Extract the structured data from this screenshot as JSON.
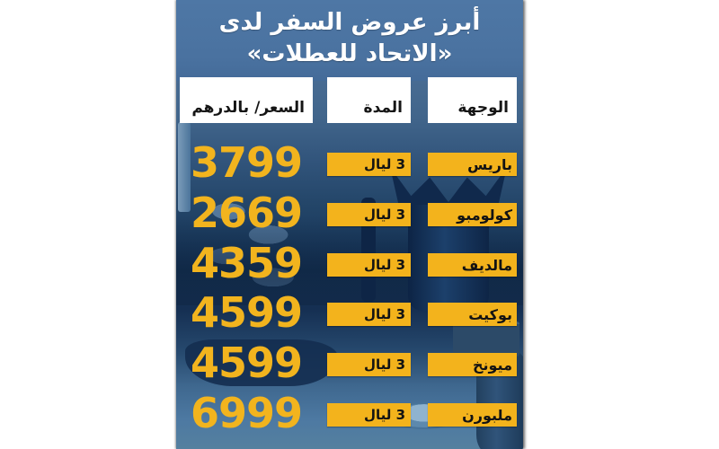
{
  "colors": {
    "accent_yellow": "#F3B31C",
    "title_blue": "#4A72A0",
    "body_navy": "#16355A",
    "header_cell_bg": "#FFFFFF",
    "text_black": "#151515",
    "text_white": "#FFFFFF"
  },
  "title": {
    "line1": "أبرز عروض السفر لدى",
    "line2": "«الاتحاد للعطلات»"
  },
  "table": {
    "headers": {
      "destination": "الوجهة",
      "duration": "المدة",
      "price": "السعر/ بالدرهم"
    },
    "rows": [
      {
        "destination": "باريس",
        "duration": "3 ليال",
        "price": "3799"
      },
      {
        "destination": "كولومبو",
        "duration": "3 ليال",
        "price": "2669"
      },
      {
        "destination": "مالديف",
        "duration": "3 ليال",
        "price": "4359"
      },
      {
        "destination": "بوكيت",
        "duration": "3 ليال",
        "price": "4599"
      },
      {
        "destination": "ميونخ",
        "duration": "3 ليال",
        "price": "4599"
      },
      {
        "destination": "ملبورن",
        "duration": "3 ليال",
        "price": "6999"
      }
    ]
  },
  "chart_data": {
    "type": "table",
    "title": "أبرز عروض السفر لدى «الاتحاد للعطلات»",
    "columns": [
      "الوجهة",
      "المدة",
      "السعر/ بالدرهم"
    ],
    "rows": [
      [
        "باريس",
        "3 ليال",
        3799
      ],
      [
        "كولومبو",
        "3 ليال",
        2669
      ],
      [
        "مالديف",
        "3 ليال",
        4359
      ],
      [
        "بوكيت",
        "3 ليال",
        4599
      ],
      [
        "ميونخ",
        "3 ليال",
        4599
      ],
      [
        "ملبورن",
        "3 ليال",
        6999
      ]
    ],
    "notes": "Travel offers infographic; prices in AED, all durations 3 nights"
  }
}
